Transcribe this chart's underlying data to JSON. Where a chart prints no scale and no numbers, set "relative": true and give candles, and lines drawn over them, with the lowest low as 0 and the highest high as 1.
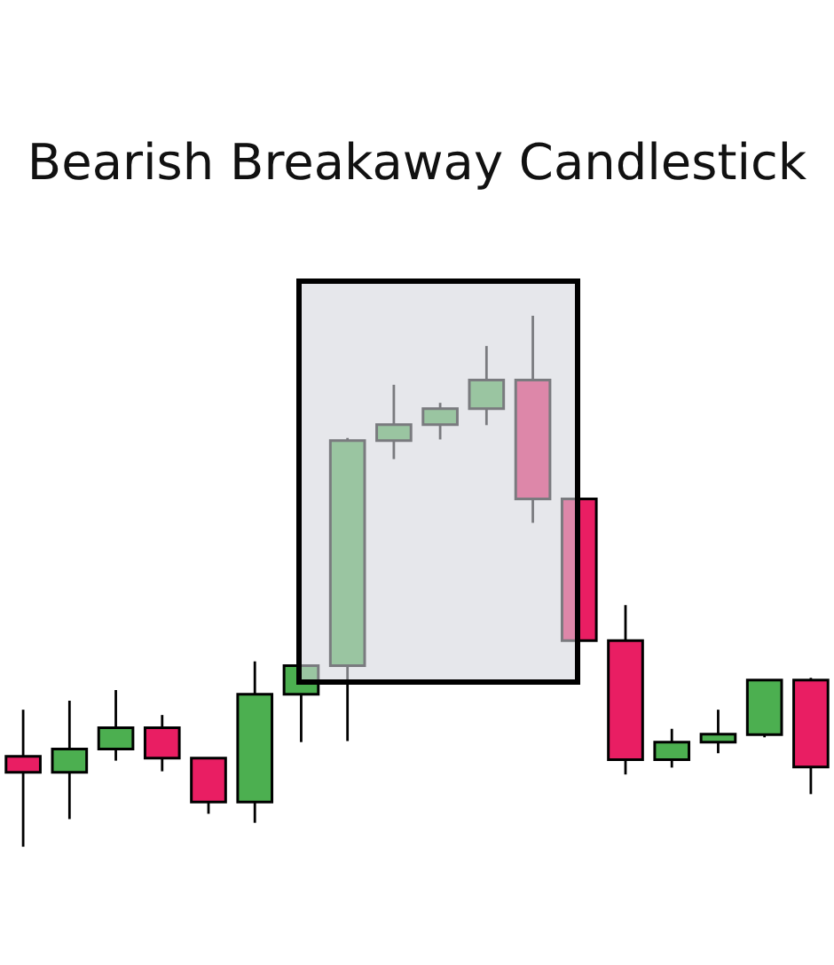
{
  "chart_data": {
    "type": "candlestick",
    "title": "Bearish Breakaway Candlestick",
    "relative": true,
    "categories": [
      null,
      null,
      null,
      null,
      null,
      null,
      null,
      null,
      null,
      null,
      null,
      null,
      null,
      null,
      null,
      null,
      null,
      null
    ],
    "ohlc": [
      [
        0.17,
        0.258,
        0,
        0.14
      ],
      [
        0.14,
        0.275,
        0.052,
        0.184
      ],
      [
        0.184,
        0.295,
        0.162,
        0.224
      ],
      [
        0.224,
        0.248,
        0.142,
        0.167
      ],
      [
        0.167,
        0.167,
        0.062,
        0.084
      ],
      [
        0.084,
        0.349,
        0.045,
        0.287
      ],
      [
        0.287,
        0.341,
        0.197,
        0.341
      ],
      [
        0.341,
        0.77,
        0.199,
        0.765
      ],
      [
        0.765,
        0.87,
        0.73,
        0.795
      ],
      [
        0.795,
        0.836,
        0.767,
        0.825
      ],
      [
        0.825,
        0.943,
        0.794,
        0.879
      ],
      [
        0.879,
        1,
        0.61,
        0.655
      ],
      [
        0.655,
        0.655,
        0.388,
        0.388
      ],
      [
        0.388,
        0.455,
        0.136,
        0.164
      ],
      [
        0.164,
        0.222,
        0.149,
        0.197
      ],
      [
        0.197,
        0.258,
        0.176,
        0.212
      ],
      [
        0.211,
        0.314,
        0.206,
        0.314
      ],
      [
        0.314,
        0.318,
        0.099,
        0.15
      ]
    ],
    "colors": [
      "#e91e63",
      "#4caf50",
      "#4caf50",
      "#e91e63",
      "#e91e63",
      "#4caf50",
      "#4caf50",
      "#4caf50",
      "#4caf50",
      "#4caf50",
      "#4caf50",
      "#e91e63",
      "#e91e63",
      "#e91e63",
      "#4caf50",
      "#4caf50",
      "#4caf50",
      "#e91e63"
    ]
  }
}
